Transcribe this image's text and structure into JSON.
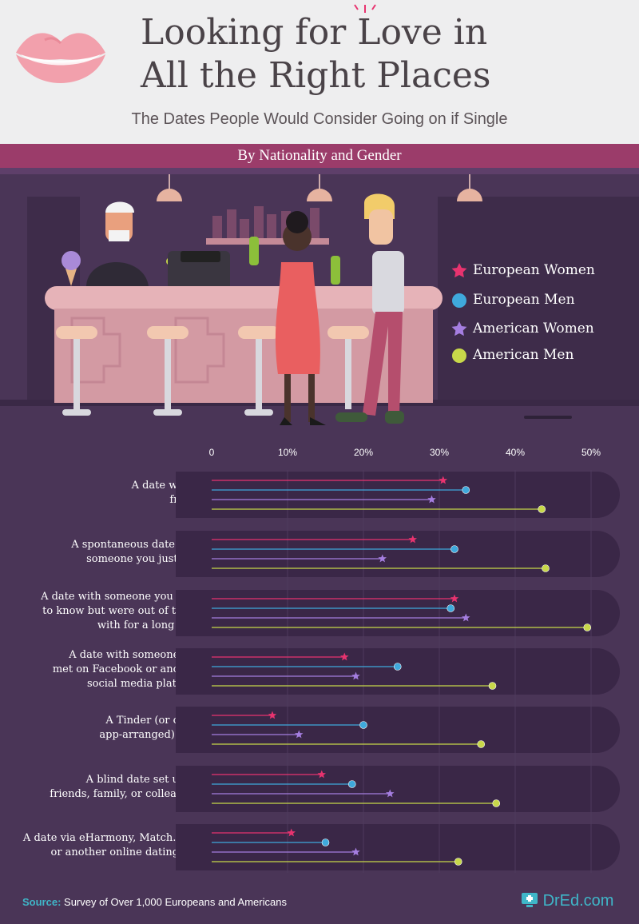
{
  "header": {
    "title_line1": "Looking for Love in",
    "title_line2": "All the Right Places",
    "subtitle": "The Dates People Would Consider Going on if Single",
    "band": "By Nationality and Gender"
  },
  "legend": [
    {
      "label": "European Women",
      "color": "#e8336f",
      "marker": "star"
    },
    {
      "label": "European Men",
      "color": "#3fa9dc",
      "marker": "circle"
    },
    {
      "label": "American Women",
      "color": "#a57ee0",
      "marker": "star"
    },
    {
      "label": "American Men",
      "color": "#c8d84a",
      "marker": "circle"
    }
  ],
  "chart_data": {
    "type": "lollipop",
    "title": "Looking for Love in All the Right Places",
    "subtitle": "The Dates People Would Consider Going on if Single",
    "x_unit": "%",
    "xlim": [
      0,
      50
    ],
    "ticks": [
      "0",
      "10%",
      "20%",
      "30%",
      "40%",
      "50%"
    ],
    "tick_values": [
      0,
      10,
      20,
      30,
      40,
      50
    ],
    "legend_position": "right",
    "categories": [
      [
        "A date with a",
        "friend"
      ],
      [
        "A spontaneous date with",
        "someone you just met"
      ],
      [
        "A date with someone you used",
        "to know but were out of touch",
        "with for a long time"
      ],
      [
        "A date with someone you",
        "met on Facebook or another",
        "social media platform"
      ],
      [
        "A Tinder (or other",
        "app-arranged) date"
      ],
      [
        "A blind date set up by",
        "friends, family, or colleagues"
      ],
      [
        "A date via eHarmony, Match.com,",
        "or another online dating site"
      ]
    ],
    "series": [
      {
        "name": "European Women",
        "values": [
          30.5,
          26.5,
          32,
          17.5,
          8,
          14.5,
          10.5
        ]
      },
      {
        "name": "European Men",
        "values": [
          33.5,
          32,
          31.5,
          24.5,
          20,
          18.5,
          15
        ]
      },
      {
        "name": "American Women",
        "values": [
          29,
          22.5,
          33.5,
          19,
          11.5,
          23.5,
          19
        ]
      },
      {
        "name": "American Men",
        "values": [
          43.5,
          44,
          49.5,
          37,
          35.5,
          37.5,
          32.5
        ]
      }
    ]
  },
  "footer": {
    "source_key": "Source:",
    "source_text": "Survey of Over 1,000 Europeans and Americans",
    "brand": "DrEd.com"
  }
}
